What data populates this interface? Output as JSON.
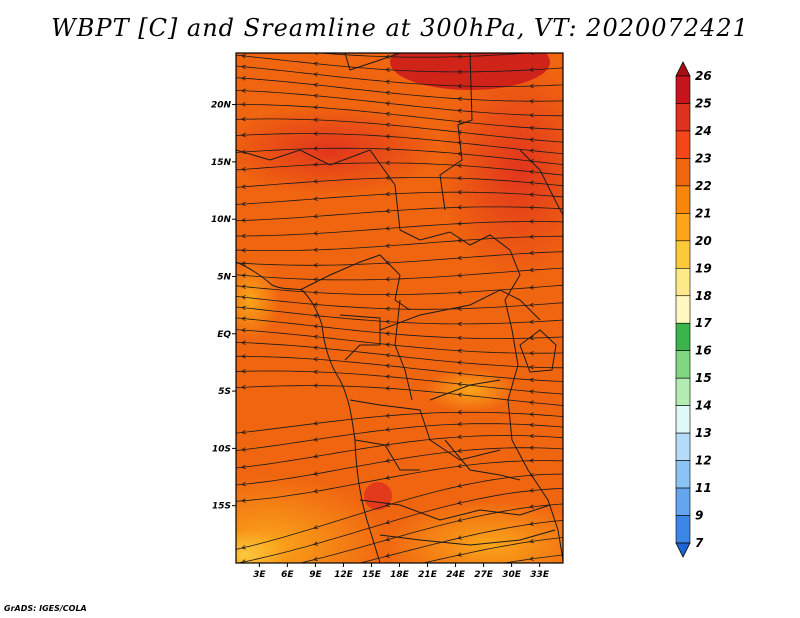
{
  "title": "WBPT [C] and Sreamline at 300hPa, VT: 2020072421",
  "credit": "GrADS: IGES/COLA",
  "map": {
    "lat_labels": [
      {
        "lat": 20,
        "label": "20N"
      },
      {
        "lat": 15,
        "label": "15N"
      },
      {
        "lat": 10,
        "label": "10N"
      },
      {
        "lat": 5,
        "label": "5N"
      },
      {
        "lat": 0,
        "label": "EQ"
      },
      {
        "lat": -5,
        "label": "5S"
      },
      {
        "lat": -10,
        "label": "10S"
      },
      {
        "lat": -15,
        "label": "15S"
      }
    ],
    "lon_labels": [
      {
        "lon": 3,
        "label": "3E"
      },
      {
        "lon": 6,
        "label": "6E"
      },
      {
        "lon": 9,
        "label": "9E"
      },
      {
        "lon": 12,
        "label": "12E"
      },
      {
        "lon": 15,
        "label": "15E"
      },
      {
        "lon": 18,
        "label": "18E"
      },
      {
        "lon": 21,
        "label": "21E"
      },
      {
        "lon": 24,
        "label": "24E"
      },
      {
        "lon": 27,
        "label": "27E"
      },
      {
        "lon": 30,
        "label": "30E"
      },
      {
        "lon": 33,
        "label": "33E"
      }
    ],
    "lon_range": [
      0.5,
      35.5
    ],
    "lat_range": [
      -20,
      24.5
    ],
    "base_color": "#f06510"
  },
  "colorbar": {
    "levels": [
      "26",
      "25",
      "24",
      "23",
      "22",
      "21",
      "20",
      "19",
      "18",
      "17",
      "16",
      "15",
      "14",
      "13",
      "12",
      "11",
      "9",
      "7"
    ],
    "colors": [
      "#a50f15",
      "#c8141c",
      "#e0301e",
      "#f5461a",
      "#f06510",
      "#f8860b",
      "#faa51a",
      "#fcc83c",
      "#fde98a",
      "#fff8c0",
      "#3cb44b",
      "#7fd87f",
      "#b2ecb2",
      "#e0f8f8",
      "#b4dcf8",
      "#8cc3f5",
      "#64a5ef",
      "#3c87e6",
      "#1e64d2"
    ]
  }
}
